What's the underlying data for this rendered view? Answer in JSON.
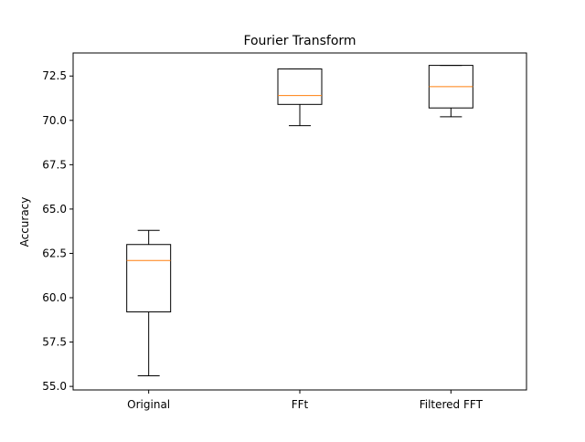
{
  "chart_data": {
    "type": "box",
    "title": "Fourier Transform",
    "xlabel": "",
    "ylabel": "Accuracy",
    "ylim": [
      54.8,
      73.8
    ],
    "yticks": [
      55.0,
      57.5,
      60.0,
      62.5,
      65.0,
      67.5,
      70.0,
      72.5
    ],
    "ytick_labels": [
      "55.0",
      "57.5",
      "60.0",
      "62.5",
      "65.0",
      "67.5",
      "70.0",
      "72.5"
    ],
    "categories": [
      "Original",
      "FFt",
      "Filtered FFT"
    ],
    "boxes": [
      {
        "label": "Original",
        "whisker_low": 55.6,
        "q1": 59.2,
        "median": 62.1,
        "q3": 63.0,
        "whisker_high": 63.8
      },
      {
        "label": "FFt",
        "whisker_low": 69.7,
        "q1": 70.9,
        "median": 71.4,
        "q3": 72.9,
        "whisker_high": 72.9
      },
      {
        "label": "Filtered FFT",
        "whisker_low": 70.2,
        "q1": 70.7,
        "median": 71.9,
        "q3": 73.1,
        "whisker_high": 73.1
      }
    ],
    "grid": false,
    "colors": {
      "box": "#000000",
      "median": "#ff7f0e",
      "axes": "#000000",
      "text": "#000000",
      "background": "#ffffff"
    }
  }
}
